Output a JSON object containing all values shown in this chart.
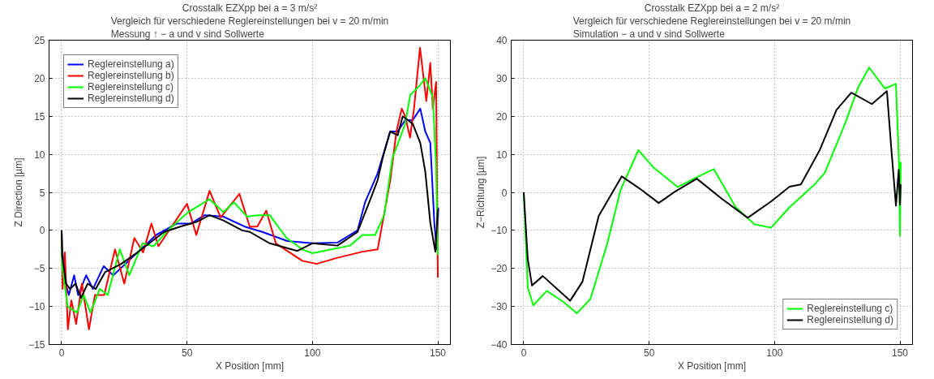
{
  "chart_data": [
    {
      "type": "line",
      "title": "Crosstalk EZXpp bei a = 3 m/s²",
      "subtitle": "Vergleich für verschiedene Reglereinstellungen bei v = 20 m/min\nMessung ↑ − a und v sind Sollwerte",
      "xlabel": "X Position [mm]",
      "ylabel": "Z Direction [µm]",
      "xlim": [
        -5,
        155
      ],
      "ylim": [
        -15,
        25
      ],
      "xticks": [
        0,
        50,
        100,
        150
      ],
      "yticks": [
        -15,
        -10,
        -5,
        0,
        5,
        10,
        15,
        20,
        25
      ],
      "grid": true,
      "legend": "top left",
      "line_style": "solid",
      "marker": "none",
      "series": [
        {
          "name": "Reglereinstellung a)",
          "color": "#0000ff",
          "x": [
            0,
            0.2,
            1.3,
            2.9,
            5,
            6.6,
            9.8,
            12.5,
            16.8,
            20.6,
            28,
            37.7,
            46,
            51.6,
            57,
            64.5,
            73,
            80,
            90,
            100,
            110,
            118,
            121,
            126,
            131,
            134,
            137,
            140,
            143,
            145,
            147,
            148.6,
            149.5,
            150.2
          ],
          "values": [
            0,
            -2.1,
            -6.6,
            -8.5,
            -5.9,
            -8.5,
            -5.9,
            -7.7,
            -4.7,
            -5.9,
            -3.6,
            -0.6,
            0.9,
            0.9,
            2,
            1.8,
            0.5,
            -0.2,
            -1.4,
            -1.7,
            -1.6,
            0,
            3.7,
            7.5,
            13,
            13,
            14.5,
            14.5,
            16,
            13,
            11.5,
            1,
            -2.5,
            3
          ]
        },
        {
          "name": "Reglereinstellung b)",
          "color": "#ff0000",
          "x": [
            0,
            0.4,
            1.3,
            2.5,
            3.9,
            5.8,
            8.1,
            10.9,
            13.3,
            17,
            21.3,
            25,
            29,
            32.5,
            35.8,
            38.6,
            50,
            53.7,
            59,
            63.4,
            70.9,
            75,
            78,
            81.6,
            85.4,
            96,
            101.6,
            110,
            120,
            126,
            131,
            133.5,
            135.6,
            137,
            138.9,
            140.5,
            142.9,
            145.4,
            147,
            148,
            149.3,
            150
          ],
          "values": [
            0,
            -7.7,
            -2.9,
            -13,
            -9.2,
            -12.3,
            -7,
            -13,
            -8.5,
            -8.5,
            -2.5,
            -7,
            -1,
            -2.9,
            0.9,
            -2.1,
            3.5,
            -0.6,
            5.2,
            1.7,
            4.8,
            0.5,
            0.5,
            2.6,
            -1.7,
            -4,
            -4.4,
            -3.6,
            -2.8,
            -2.5,
            6.5,
            13,
            16,
            15,
            12.2,
            16,
            24,
            17,
            22,
            16,
            19.5,
            -6.2
          ]
        },
        {
          "name": "Reglereinstellung c)",
          "color": "#00ff00",
          "x": [
            0,
            0.2,
            2.4,
            6.1,
            8.8,
            11.5,
            15.2,
            18.4,
            23.2,
            27,
            32.3,
            36.6,
            43,
            50.5,
            59,
            64.5,
            68.7,
            74,
            78,
            83,
            89.7,
            96,
            100,
            115,
            120,
            125,
            128.6,
            131.9,
            137,
            139,
            142.7,
            145,
            148,
            149.3,
            150
          ],
          "values": [
            0,
            -4.7,
            -10,
            -10.8,
            -8.5,
            -10.8,
            -7.7,
            -8.5,
            -2.5,
            -5.9,
            -1.7,
            -2.1,
            0.2,
            2.4,
            4.1,
            2.4,
            3.7,
            1.8,
            2,
            2,
            -1,
            -2.5,
            -3,
            -2,
            -0.6,
            -0.6,
            2,
            9.5,
            14,
            17.8,
            19,
            20,
            17.5,
            8.5,
            -3.2
          ]
        },
        {
          "name": "Reglereinstellung d)",
          "color": "#000000",
          "x": [
            0,
            0.2,
            1.8,
            3.4,
            5.6,
            7.7,
            10.4,
            13.6,
            17.3,
            23.8,
            30.2,
            40.9,
            47.3,
            53.7,
            59,
            64.5,
            72,
            75,
            83,
            94,
            100,
            110,
            118,
            123,
            126,
            128,
            131,
            134,
            136,
            140,
            143,
            145,
            147,
            149,
            150
          ],
          "values": [
            0,
            -3.2,
            -7,
            -7.7,
            -7,
            -8.9,
            -7,
            -7.7,
            -5.5,
            -4.4,
            -2.9,
            -0.2,
            0.5,
            1.1,
            2,
            1.3,
            0,
            -0.2,
            -1.7,
            -2.7,
            -1.7,
            -2,
            -0.2,
            4,
            6.6,
            9.5,
            13,
            12.5,
            15,
            14,
            11.5,
            7.7,
            1,
            -2.8,
            2.8
          ]
        }
      ]
    },
    {
      "type": "line",
      "title": "Crosstalk EZXpp bei a = 2 m/s²",
      "subtitle": "Vergleich für verschiedene Reglereinstellungen bei v = 20 m/min\nSimulation − a und v sind Sollwerte",
      "xlabel": "X Position [mm]",
      "ylabel": "Z−Richtung [µm]",
      "xlim": [
        -5,
        155
      ],
      "ylim": [
        -40,
        40
      ],
      "xticks": [
        0,
        50,
        100,
        150
      ],
      "yticks": [
        -40,
        -30,
        -20,
        -10,
        0,
        10,
        20,
        30,
        40
      ],
      "grid": true,
      "legend": "bottom right",
      "line_style": "solid",
      "marker": "none",
      "series": [
        {
          "name": "Reglereinstellung c)",
          "color": "#00ff00",
          "x": [
            0,
            1.6,
            3.8,
            9.2,
            15.8,
            21.2,
            26.6,
            33.2,
            38.6,
            45.7,
            51.6,
            61.4,
            70.3,
            75.8,
            84.5,
            92,
            98.6,
            106,
            116,
            120,
            128,
            133.4,
            137.7,
            144,
            148.4,
            149.6,
            150,
            150.3
          ],
          "values": [
            0,
            -25,
            -29.7,
            -25.9,
            -28.8,
            -31.8,
            -28,
            -13.7,
            0.6,
            11.1,
            6.6,
            1.4,
            4.4,
            6.1,
            -3.9,
            -8.4,
            -9.3,
            -3.9,
            2.1,
            5.1,
            17.9,
            27.7,
            32.8,
            27.3,
            28.5,
            8.1,
            -11.4,
            8
          ]
        },
        {
          "name": "Reglereinstellung d)",
          "color": "#000000",
          "x": [
            0,
            1.6,
            3.3,
            7.6,
            18.5,
            23.4,
            29.9,
            39.1,
            46.2,
            53.8,
            60.3,
            69,
            79,
            89.3,
            98.6,
            106,
            110.5,
            118,
            124.7,
            130.6,
            138.8,
            144.8,
            146.4,
            148.4,
            149.5,
            150,
            150.3
          ],
          "values": [
            0,
            -17.5,
            -24.5,
            -22,
            -28.5,
            -23.5,
            -6.2,
            4.2,
            1,
            -2.8,
            0.2,
            3.6,
            -1.7,
            -6.7,
            -2.4,
            1.5,
            2.1,
            11.1,
            21.7,
            26.2,
            23.2,
            26.6,
            12.7,
            -3.5,
            5.9,
            -3.2,
            2.1
          ]
        }
      ]
    }
  ]
}
